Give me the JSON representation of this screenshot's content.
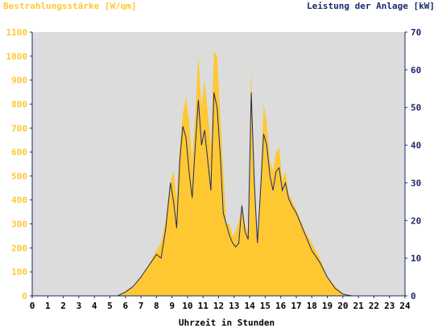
{
  "colors": {
    "irradiance": "#ffc833",
    "power": "#1a2a6c",
    "left_axis_text": "#ffc833",
    "right_axis_text": "#1a2a6c",
    "plot_bg": "#dcdcdc",
    "axis": "#1a2a6c"
  },
  "chart_data": {
    "type": "area",
    "ylabel_left": "Bestrahlungsstärke [W/qm]",
    "ylabel_right": "Leistung der Anlage [kW]",
    "xlabel": "Uhrzeit in Stunden",
    "xlim": [
      0,
      24
    ],
    "ylim_left": [
      0,
      1100
    ],
    "ylim_right": [
      0,
      70
    ],
    "x_ticks": [
      "0",
      "1",
      "2",
      "3",
      "4",
      "5",
      "6",
      "7",
      "8",
      "9",
      "10",
      "11",
      "12",
      "13",
      "14",
      "15",
      "16",
      "17",
      "18",
      "19",
      "20",
      "21",
      "22",
      "23",
      "24"
    ],
    "y_ticks_left": [
      "0",
      "100",
      "200",
      "300",
      "400",
      "500",
      "600",
      "700",
      "800",
      "900",
      "1000",
      "1100"
    ],
    "y_ticks_right": [
      "0",
      "10",
      "20",
      "30",
      "40",
      "50",
      "60",
      "70"
    ],
    "grid": false,
    "series": [
      {
        "name": "Bestrahlungsstärke [W/qm]",
        "style": "area",
        "axis": "left",
        "x": [
          0,
          5.5,
          6,
          6.5,
          7,
          7.5,
          8,
          8.3,
          8.6,
          8.9,
          9.1,
          9.3,
          9.5,
          9.7,
          9.9,
          10.1,
          10.3,
          10.5,
          10.7,
          10.9,
          11.1,
          11.3,
          11.5,
          11.7,
          11.9,
          12.1,
          12.3,
          12.5,
          12.7,
          12.9,
          13.1,
          13.3,
          13.5,
          13.7,
          13.9,
          14.1,
          14.3,
          14.5,
          14.7,
          14.9,
          15.1,
          15.3,
          15.5,
          15.7,
          15.9,
          16.1,
          16.3,
          16.5,
          16.7,
          17,
          17.5,
          18,
          18.5,
          19,
          19.5,
          20,
          20.3,
          20.6,
          21,
          24
        ],
        "y": [
          0,
          0,
          20,
          40,
          80,
          130,
          190,
          220,
          320,
          480,
          520,
          400,
          620,
          760,
          830,
          730,
          560,
          760,
          1000,
          790,
          900,
          770,
          620,
          1020,
          1000,
          760,
          530,
          300,
          300,
          250,
          270,
          310,
          380,
          300,
          260,
          950,
          520,
          230,
          470,
          800,
          720,
          560,
          520,
          600,
          620,
          480,
          520,
          430,
          400,
          360,
          280,
          220,
          160,
          80,
          40,
          10,
          5,
          2,
          0,
          0
        ]
      },
      {
        "name": "Leistung der Anlage [kW]",
        "style": "line",
        "axis": "right",
        "x": [
          0,
          5.5,
          6,
          6.5,
          7,
          7.5,
          8,
          8.3,
          8.6,
          8.9,
          9.1,
          9.3,
          9.5,
          9.7,
          9.9,
          10.1,
          10.3,
          10.5,
          10.7,
          10.9,
          11.1,
          11.3,
          11.5,
          11.7,
          11.9,
          12.1,
          12.3,
          12.5,
          12.7,
          12.9,
          13.1,
          13.3,
          13.5,
          13.7,
          13.9,
          14.1,
          14.3,
          14.5,
          14.7,
          14.9,
          15.1,
          15.3,
          15.5,
          15.7,
          15.9,
          16.1,
          16.3,
          16.5,
          16.7,
          17,
          17.5,
          18,
          18.5,
          19,
          19.5,
          20,
          20.3,
          20.6,
          21,
          24
        ],
        "y": [
          0,
          0,
          1,
          2.5,
          5,
          8,
          11,
          10,
          18,
          30,
          25,
          18,
          36,
          45,
          42,
          33,
          26,
          40,
          52,
          40,
          44,
          36,
          28,
          54,
          50,
          38,
          22,
          19,
          16,
          14,
          13,
          14,
          24,
          17,
          15,
          54,
          30,
          14,
          28,
          43,
          40,
          32,
          28,
          33,
          34,
          28,
          30,
          26,
          24,
          22,
          17,
          12,
          9,
          5,
          2,
          0.5,
          0.2,
          0,
          0,
          0
        ]
      }
    ]
  }
}
